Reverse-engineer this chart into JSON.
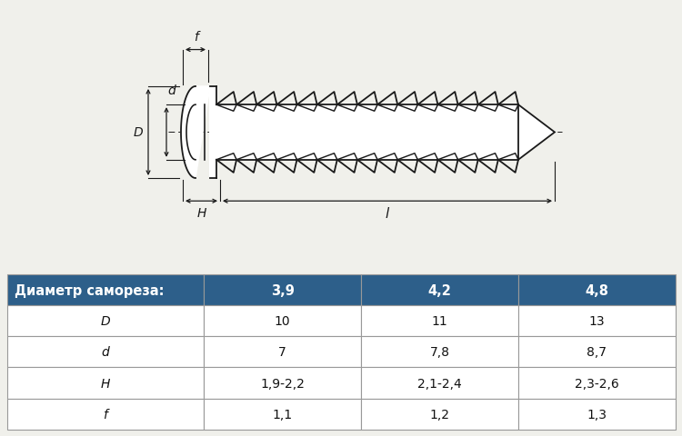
{
  "bg_color": "#f0f0eb",
  "table_header_color": "#2d5f8a",
  "table_header_text_color": "#ffffff",
  "table_border_color": "#999999",
  "header_row": [
    "Диаметр самореза:",
    "3,9",
    "4,2",
    "4,8"
  ],
  "rows": [
    [
      "D",
      "10",
      "11",
      "13"
    ],
    [
      "d",
      "7",
      "7,8",
      "8,7"
    ],
    [
      "H",
      "1,9-2,2",
      "2,1-2,4",
      "2,3-2,6"
    ],
    [
      "f",
      "1,1",
      "1,2",
      "1,3"
    ]
  ],
  "line_color": "#1a1a1a",
  "fig_width": 7.5,
  "fig_height": 4.81,
  "dpi": 100
}
